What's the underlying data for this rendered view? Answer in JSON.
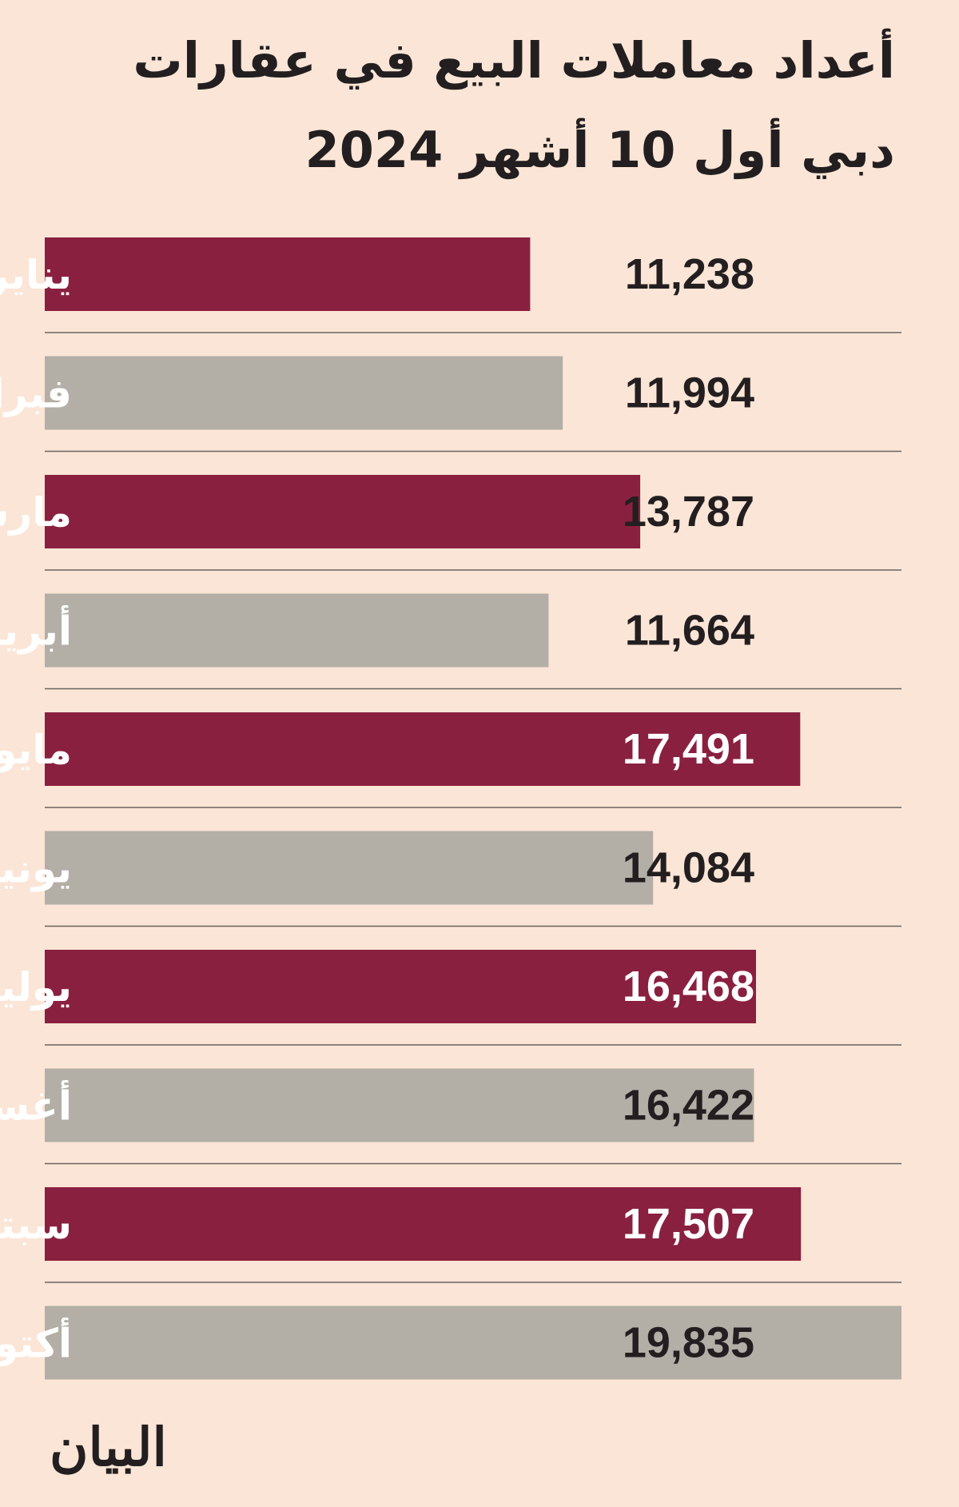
{
  "chart_data": {
    "type": "bar",
    "orientation": "horizontal",
    "title": "أعداد معاملات البيع في عقارات دبي أول 10 أشهر 2024",
    "categories": [
      "يناير",
      "فبراير",
      "مارس",
      "أبريل",
      "مايو",
      "يونيو",
      "يوليو",
      "أغسطس",
      "سبتمبر",
      "أكتوبر"
    ],
    "values": [
      11238,
      11994,
      13787,
      11664,
      17491,
      14084,
      16468,
      16422,
      17507,
      19835
    ],
    "value_labels": [
      "11,238",
      "11,994",
      "13,787",
      "11,664",
      "17,491",
      "14,084",
      "16,468",
      "16,422",
      "17,507",
      "19,835"
    ],
    "bar_colors": [
      "#8a2040",
      "#b3aea6"
    ],
    "grid": "horizontal separators",
    "legend": "none"
  },
  "logo": "البيان"
}
